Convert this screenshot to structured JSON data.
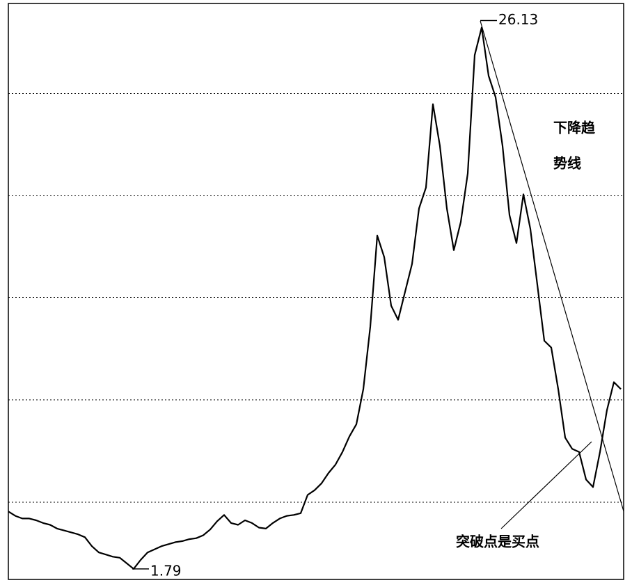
{
  "chart_data": {
    "type": "line",
    "log_scale": true,
    "ylim": [
      1.7,
      28.4
    ],
    "grid": true,
    "grid_values": [
      2.48,
      4.09,
      6.75,
      11.09,
      18.28
    ],
    "series": [
      {
        "color": "#000000",
        "values": [
          2.37,
          2.32,
          2.29,
          2.29,
          2.27,
          2.24,
          2.22,
          2.18,
          2.16,
          2.14,
          2.12,
          2.09,
          2.0,
          1.94,
          1.92,
          1.9,
          1.89,
          1.84,
          1.79,
          1.87,
          1.94,
          1.97,
          2.0,
          2.02,
          2.04,
          2.05,
          2.07,
          2.08,
          2.11,
          2.17,
          2.26,
          2.33,
          2.24,
          2.22,
          2.27,
          2.24,
          2.19,
          2.18,
          2.24,
          2.29,
          2.32,
          2.33,
          2.35,
          2.57,
          2.63,
          2.72,
          2.86,
          2.98,
          3.17,
          3.42,
          3.63,
          4.31,
          5.85,
          9.13,
          8.22,
          6.48,
          6.05,
          6.94,
          7.95,
          10.43,
          11.55,
          17.36,
          14.16,
          10.43,
          8.5,
          9.76,
          12.37,
          22.07,
          25.26,
          19.94,
          17.97,
          14.16,
          10.09,
          8.8,
          11.17,
          9.43,
          7.18,
          5.46,
          5.28,
          4.31,
          3.4,
          3.22,
          3.17,
          2.77,
          2.67,
          3.17,
          3.89,
          4.46,
          4.31
        ]
      }
    ],
    "high": 26.13,
    "low": 1.79,
    "trend_label": [
      "下降趋",
      "势线"
    ],
    "breakout_label": "突破点是买点"
  }
}
